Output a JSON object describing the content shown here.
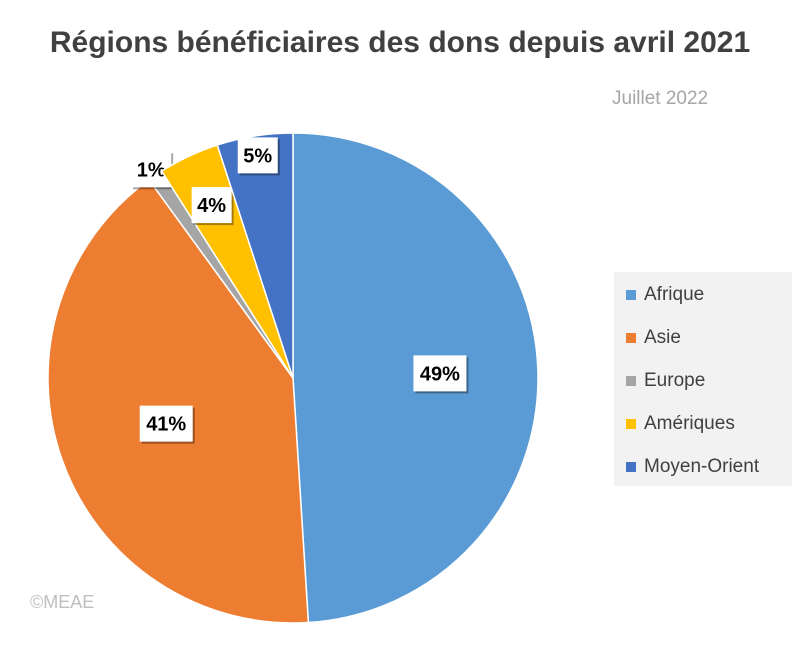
{
  "chart_data": {
    "type": "pie",
    "title": "Régions bénéficiaires des dons depuis avril 2021",
    "subtitle": "Juillet 2022",
    "source": "©MEAE",
    "legend_position": "right",
    "slices": [
      {
        "label": "Afrique",
        "value": 49,
        "display": "49%",
        "color": "#5b9bd5"
      },
      {
        "label": "Asie",
        "value": 41,
        "display": "41%",
        "color": "#ed7d31"
      },
      {
        "label": "Europe",
        "value": 1,
        "display": "1%",
        "color": "#a5a5a5"
      },
      {
        "label": "Amériques",
        "value": 4,
        "display": "4%",
        "color": "#ffc000"
      },
      {
        "label": "Moyen-Orient",
        "value": 5,
        "display": "5%",
        "color": "#4472c4"
      }
    ]
  }
}
